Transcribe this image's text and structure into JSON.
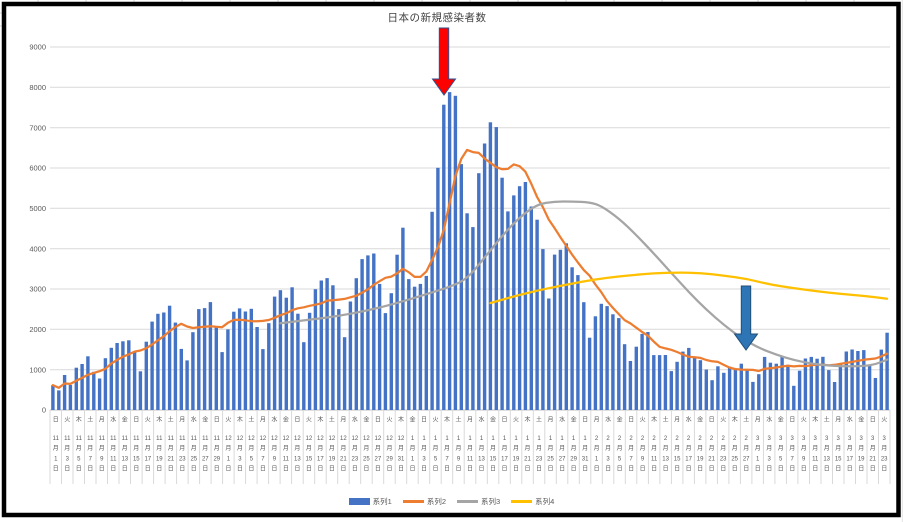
{
  "chart_data": {
    "type": "combo-bar-line",
    "title": "日本の新規感染者数",
    "date_range_shown": "2020-11-01 to 2021-03-24 (daily)",
    "y_axis": {
      "min": 0,
      "max": 9000,
      "tick_interval": 1000,
      "ticks": [
        0,
        1000,
        2000,
        3000,
        4000,
        5000,
        6000,
        7000,
        8000,
        9000
      ]
    },
    "x_axis": {
      "label_suffixes": {
        "month": "月",
        "day": "日"
      },
      "labels": [
        [
          11,
          1,
          "日"
        ],
        [
          11,
          3,
          "火"
        ],
        [
          11,
          5,
          "木"
        ],
        [
          11,
          7,
          "土"
        ],
        [
          11,
          9,
          "月"
        ],
        [
          11,
          11,
          "水"
        ],
        [
          11,
          13,
          "金"
        ],
        [
          11,
          15,
          "日"
        ],
        [
          11,
          17,
          "火"
        ],
        [
          11,
          19,
          "木"
        ],
        [
          11,
          21,
          "土"
        ],
        [
          11,
          23,
          "月"
        ],
        [
          11,
          25,
          "水"
        ],
        [
          11,
          27,
          "金"
        ],
        [
          11,
          29,
          "日"
        ],
        [
          12,
          1,
          "火"
        ],
        [
          12,
          3,
          "木"
        ],
        [
          12,
          5,
          "土"
        ],
        [
          12,
          7,
          "月"
        ],
        [
          12,
          9,
          "水"
        ],
        [
          12,
          11,
          "金"
        ],
        [
          12,
          13,
          "日"
        ],
        [
          12,
          15,
          "火"
        ],
        [
          12,
          17,
          "木"
        ],
        [
          12,
          19,
          "土"
        ],
        [
          12,
          21,
          "月"
        ],
        [
          12,
          23,
          "水"
        ],
        [
          12,
          25,
          "金"
        ],
        [
          12,
          27,
          "日"
        ],
        [
          12,
          29,
          "火"
        ],
        [
          12,
          31,
          "木"
        ],
        [
          1,
          1,
          "金"
        ],
        [
          1,
          3,
          "日"
        ],
        [
          1,
          5,
          "火"
        ],
        [
          1,
          7,
          "木"
        ],
        [
          1,
          9,
          "土"
        ],
        [
          1,
          11,
          "月"
        ],
        [
          1,
          13,
          "水"
        ],
        [
          1,
          15,
          "金"
        ],
        [
          1,
          17,
          "日"
        ],
        [
          1,
          19,
          "火"
        ],
        [
          1,
          21,
          "木"
        ],
        [
          1,
          23,
          "土"
        ],
        [
          1,
          25,
          "月"
        ],
        [
          1,
          27,
          "水"
        ],
        [
          1,
          29,
          "金"
        ],
        [
          1,
          31,
          "日"
        ],
        [
          2,
          1,
          "月"
        ],
        [
          2,
          3,
          "水"
        ],
        [
          2,
          5,
          "金"
        ],
        [
          2,
          7,
          "日"
        ],
        [
          2,
          9,
          "火"
        ],
        [
          2,
          11,
          "木"
        ],
        [
          2,
          13,
          "土"
        ],
        [
          2,
          15,
          "月"
        ],
        [
          2,
          17,
          "水"
        ],
        [
          2,
          19,
          "金"
        ],
        [
          2,
          21,
          "日"
        ],
        [
          2,
          23,
          "火"
        ],
        [
          2,
          25,
          "木"
        ],
        [
          2,
          27,
          "土"
        ],
        [
          3,
          1,
          "月"
        ],
        [
          3,
          3,
          "水"
        ],
        [
          3,
          5,
          "金"
        ],
        [
          3,
          7,
          "日"
        ],
        [
          3,
          9,
          "火"
        ],
        [
          3,
          11,
          "木"
        ],
        [
          3,
          13,
          "土"
        ],
        [
          3,
          15,
          "月"
        ],
        [
          3,
          17,
          "水"
        ],
        [
          3,
          19,
          "金"
        ],
        [
          3,
          21,
          "日"
        ],
        [
          3,
          23,
          "火"
        ]
      ]
    },
    "series": [
      {
        "name": "系列1",
        "type": "bar",
        "color": "#4472C4",
        "values": [
          614,
          486,
          868,
          620,
          1048,
          1141,
          1331,
          947,
          782,
          1284,
          1543,
          1660,
          1704,
          1729,
          1439,
          959,
          1694,
          2191,
          2386,
          2418,
          2586,
          2168,
          1515,
          1229,
          1930,
          2501,
          2527,
          2674,
          2066,
          1436,
          1998,
          2437,
          2518,
          2442,
          2508,
          2058,
          1509,
          2152,
          2812,
          2971,
          2785,
          3041,
          2388,
          1680,
          2410,
          2994,
          3211,
          3271,
          3091,
          2501,
          1806,
          2690,
          3269,
          3742,
          3832,
          3881,
          3127,
          2403,
          2896,
          3851,
          4520,
          3246,
          3058,
          3127,
          3325,
          4915,
          6004,
          7570,
          7882,
          7790,
          6097,
          4876,
          4535,
          5870,
          6607,
          7133,
          7014,
          5759,
          4925,
          5320,
          5549,
          5653,
          5045,
          4717,
          3990,
          2764,
          3853,
          3971,
          4133,
          3539,
          3344,
          2673,
          1792,
          2324,
          2632,
          2576,
          2372,
          2279,
          1631,
          1216,
          1570,
          1887,
          1933,
          1362,
          1361,
          1364,
          965,
          1194,
          1448,
          1539,
          1301,
          1234,
          1005,
          739,
          1083,
          922,
          1076,
          1035,
          1148,
          999,
          697,
          888,
          1316,
          1173,
          1148,
          1330,
          1121,
          599,
          974,
          1277,
          1316,
          1271,
          1320,
          989,
          695,
          1127,
          1451,
          1499,
          1463,
          1485,
          1121,
          793,
          1498,
          1917
        ]
      },
      {
        "name": "系列2",
        "type": "line",
        "color": "#ED7D31",
        "derivation": "7-day trailing moving average of 系列1 (computed from its values)"
      },
      {
        "name": "系列3",
        "type": "line",
        "color": "#A5A5A5",
        "points": [
          [
            40,
            2150
          ],
          [
            45,
            2240
          ],
          [
            50,
            2330
          ],
          [
            55,
            2470
          ],
          [
            60,
            2650
          ],
          [
            65,
            2870
          ],
          [
            69,
            3050
          ],
          [
            72,
            3250
          ],
          [
            75,
            3780
          ],
          [
            78,
            4320
          ],
          [
            81,
            4780
          ],
          [
            84,
            5100
          ],
          [
            87,
            5170
          ],
          [
            90,
            5170
          ],
          [
            93,
            5150
          ],
          [
            95,
            5060
          ],
          [
            98,
            4750
          ],
          [
            101,
            4340
          ],
          [
            104,
            3880
          ],
          [
            107,
            3400
          ],
          [
            110,
            2920
          ],
          [
            113,
            2490
          ],
          [
            116,
            2110
          ],
          [
            119,
            1780
          ],
          [
            122,
            1540
          ],
          [
            125,
            1370
          ],
          [
            128,
            1240
          ],
          [
            131,
            1150
          ],
          [
            134,
            1100
          ],
          [
            137,
            1080
          ],
          [
            140,
            1090
          ],
          [
            142,
            1130
          ],
          [
            144,
            1250
          ]
        ]
      },
      {
        "name": "系列4",
        "type": "line",
        "color": "#FFC000",
        "points": [
          [
            76,
            2650
          ],
          [
            80,
            2820
          ],
          [
            84,
            2960
          ],
          [
            88,
            3080
          ],
          [
            92,
            3190
          ],
          [
            96,
            3280
          ],
          [
            100,
            3340
          ],
          [
            104,
            3390
          ],
          [
            108,
            3410
          ],
          [
            112,
            3400
          ],
          [
            116,
            3330
          ],
          [
            120,
            3250
          ],
          [
            124,
            3110
          ],
          [
            128,
            3020
          ],
          [
            132,
            2940
          ],
          [
            136,
            2880
          ],
          [
            140,
            2830
          ],
          [
            144,
            2760
          ]
        ]
      }
    ],
    "legend": {
      "position": "bottom",
      "labels": [
        "系列1",
        "系列2",
        "系列3",
        "系列4"
      ]
    },
    "annotations": [
      {
        "shape": "down-arrow",
        "fill": "#FF0000",
        "stroke": "#2F528F",
        "x": 444,
        "y_top": 28,
        "y_tip": 95
      },
      {
        "shape": "down-arrow",
        "fill": "#2E75B6",
        "stroke": "#1F4E79",
        "x": 746,
        "y_top": 286,
        "y_tip": 350
      }
    ],
    "grid": "horizontal-only",
    "colors": {
      "gridline": "#D9D9D9",
      "axis_line": "#BFBFBF",
      "axis_text": "#595959",
      "title_text": "#404040",
      "frame": "#000000"
    }
  }
}
